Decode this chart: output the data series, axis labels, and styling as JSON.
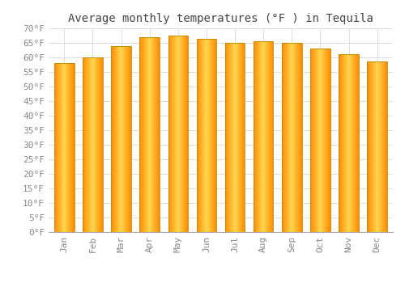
{
  "title": "Average monthly temperatures (°F ) in Tequila",
  "months": [
    "Jan",
    "Feb",
    "Mar",
    "Apr",
    "May",
    "Jun",
    "Jul",
    "Aug",
    "Sep",
    "Oct",
    "Nov",
    "Dec"
  ],
  "values": [
    58,
    60,
    64,
    67,
    67.5,
    66.5,
    65,
    65.5,
    65,
    63,
    61,
    58.5
  ],
  "background_color": "#ffffff",
  "plot_bg_color": "#ffffff",
  "ylim": [
    0,
    70
  ],
  "yticks": [
    0,
    5,
    10,
    15,
    20,
    25,
    30,
    35,
    40,
    45,
    50,
    55,
    60,
    65,
    70
  ],
  "ytick_labels": [
    "0°F",
    "5°F",
    "10°F",
    "15°F",
    "20°F",
    "25°F",
    "30°F",
    "35°F",
    "40°F",
    "45°F",
    "50°F",
    "55°F",
    "60°F",
    "65°F",
    "70°F"
  ],
  "title_fontsize": 10,
  "tick_fontsize": 8,
  "grid_color": "#dddddd",
  "font_family": "monospace",
  "bar_edge_color": "#cc8800",
  "bar_center_color": "#FFD966",
  "bar_side_color": "#FFA500",
  "tick_color": "#888888",
  "title_color": "#444444"
}
